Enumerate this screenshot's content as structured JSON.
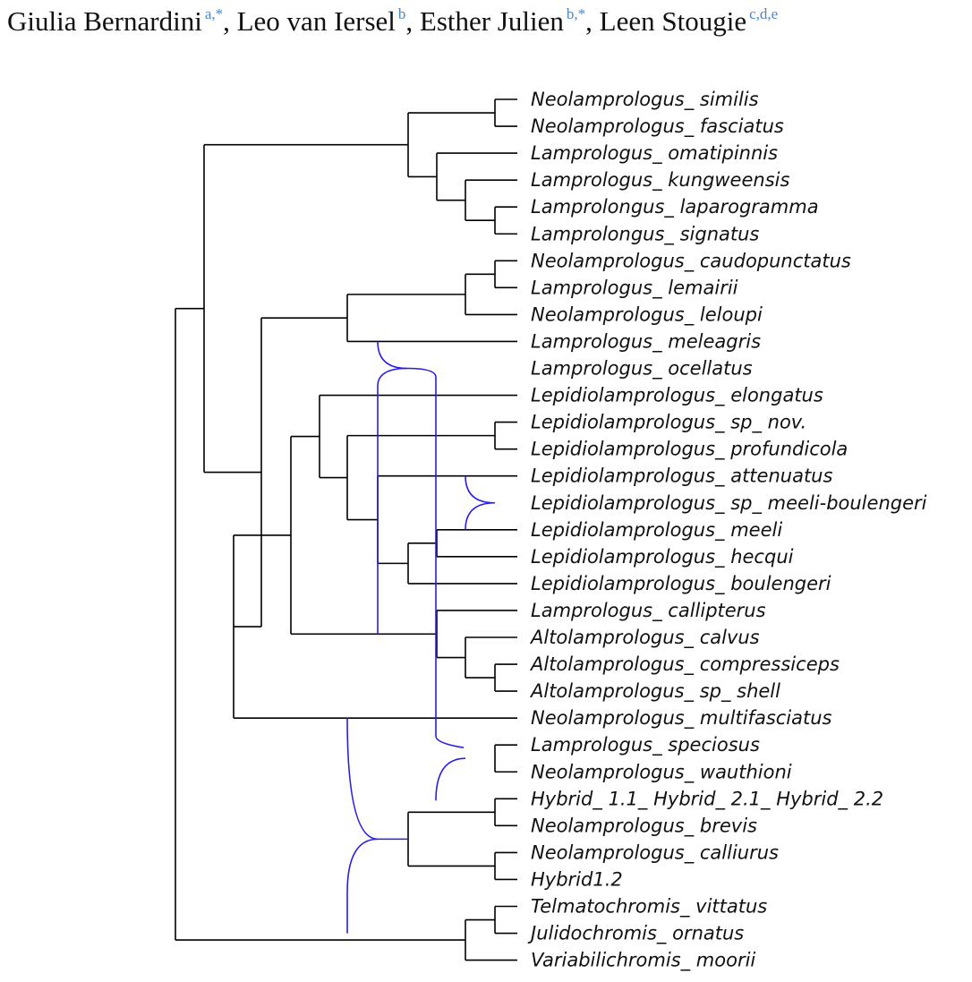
{
  "authors": [
    {
      "name": "Giulia Bernardini",
      "affil": "a,*",
      "sep": ", "
    },
    {
      "name": "Leo van Iersel",
      "affil": "b",
      "sep": ", "
    },
    {
      "name": "Esther Julien",
      "affil": "b,*",
      "sep": ", "
    },
    {
      "name": "Leen Stougie",
      "affil": "c,d,e",
      "sep": ""
    }
  ],
  "taxa": [
    "Neolamprologus_ similis",
    "Neolamprologus_ fasciatus",
    "Lamprologus_ omatipinnis",
    "Lamprologus_ kungweensis",
    "Lamprolongus_ laparogramma",
    "Lamprolongus_ signatus",
    "Neolamprologus_ caudopunctatus",
    "Lamprologus_ lemairii",
    "Neolamprologus_ leloupi",
    "Lamprologus_ meleagris",
    "Lamprologus_ ocellatus",
    "Lepidiolamprologus_ elongatus",
    "Lepidiolamprologus_ sp_ nov.",
    "Lepidiolamprologus_ profundicola",
    "Lepidiolamprologus_ attenuatus",
    "Lepidiolamprologus_ sp_ meeli-boulengeri",
    "Lepidiolamprologus_ meeli",
    "Lepidiolamprologus_ hecqui",
    "Lepidiolamprologus_ boulengeri",
    "Lamprologus_ callipterus",
    "Altolamprologus_ calvus",
    "Altolamprologus_ compressiceps",
    "Altolamprologus_ sp_ shell",
    "Neolamprologus_ multifasciatus",
    "Lamprologus_ speciosus",
    "Neolamprologus_ wauthioni",
    "Hybrid_ 1.1_ Hybrid_ 2.1_ Hybrid_ 2.2",
    "Neolamprologus_ brevis",
    "Neolamprologus_ calliurus",
    "Hybrid1.2",
    "Telmatochromis_ vittatus",
    "Julidochromis_ ornatus",
    "Variabilichromis_ moorii"
  ],
  "colors": {
    "tree_edge": "#000000",
    "reticulation_edge": "#2a1ee0",
    "affiliation": "#4a86c8"
  }
}
